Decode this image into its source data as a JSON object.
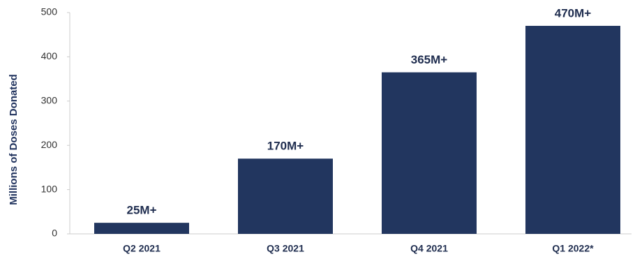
{
  "chart_data": {
    "type": "bar",
    "y_axis_label": "Millions of Doses Donated",
    "categories": [
      "Q2 2021",
      "Q3 2021",
      "Q4 2021",
      "Q1 2022*"
    ],
    "values": [
      25,
      170,
      365,
      470
    ],
    "value_labels": [
      "25M+",
      "170M+",
      "365M+",
      "470M+"
    ],
    "color": "#22365f",
    "ylim": [
      0,
      500
    ],
    "yticks": [
      0,
      100,
      200,
      300,
      400,
      500
    ],
    "grid": false
  }
}
